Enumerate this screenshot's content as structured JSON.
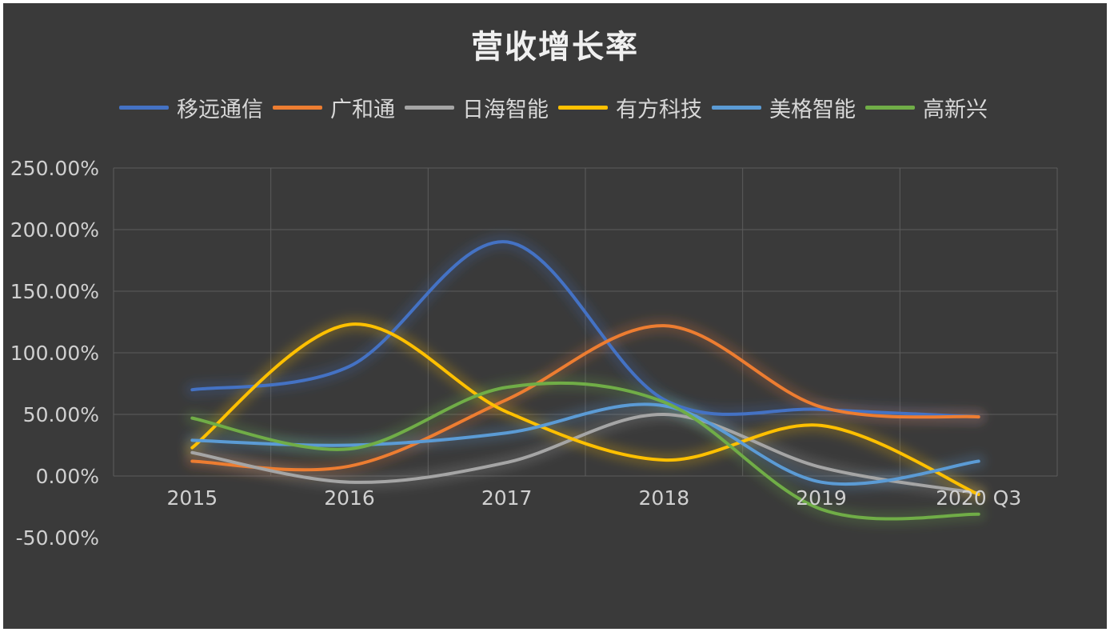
{
  "chart_data": {
    "type": "line",
    "title": "营收增长率",
    "categories": [
      "2015",
      "2016",
      "2017",
      "2018",
      "2019",
      "2020 Q3"
    ],
    "y_ticks": [
      "250.00%",
      "200.00%",
      "150.00%",
      "100.00%",
      "50.00%",
      "0.00%",
      "-50.00%"
    ],
    "ylim": [
      -50,
      250
    ],
    "smooth": true,
    "grid": true,
    "legend_position": "top",
    "series": [
      {
        "name": "移远通信",
        "color": "#4472c4",
        "values": [
          70,
          89,
          190,
          62,
          54,
          48
        ]
      },
      {
        "name": "广和通",
        "color": "#ed7d31",
        "values": [
          12,
          8,
          62,
          122,
          56,
          48
        ]
      },
      {
        "name": "日海智能",
        "color": "#a5a5a5",
        "values": [
          19,
          -5,
          11,
          50,
          7,
          -14
        ]
      },
      {
        "name": "有方科技",
        "color": "#ffc000",
        "values": [
          23,
          123,
          52,
          13,
          41,
          -15
        ]
      },
      {
        "name": "美格智能",
        "color": "#5b9bd5",
        "values": [
          29,
          25,
          35,
          57,
          -5,
          12
        ]
      },
      {
        "name": "高新兴",
        "color": "#70ad47",
        "values": [
          47,
          22,
          72,
          60,
          -27,
          -31
        ]
      }
    ]
  }
}
